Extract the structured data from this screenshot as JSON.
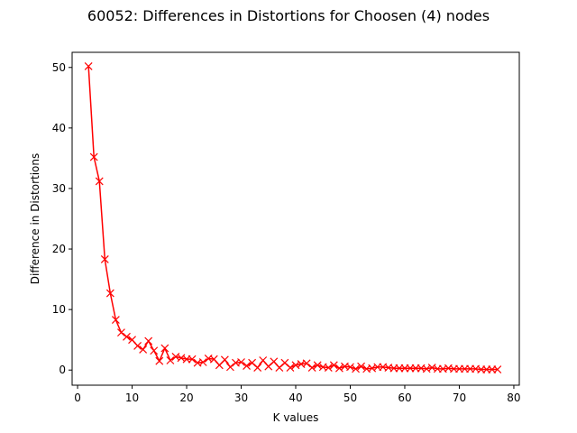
{
  "chart_data": {
    "type": "line",
    "title": "60052: Differences in Distortions for Choosen (4) nodes",
    "xlabel": "K values",
    "ylabel": "Difference in Distortions",
    "xlim": [
      -1,
      81
    ],
    "ylim": [
      -2.5,
      52.5
    ],
    "xticks": [
      0,
      10,
      20,
      30,
      40,
      50,
      60,
      70,
      80
    ],
    "yticks": [
      0,
      10,
      20,
      30,
      40,
      50
    ],
    "grid": false,
    "legend": "none",
    "series_color": "#ff0000",
    "marker": "x",
    "x": [
      2,
      3,
      4,
      5,
      6,
      7,
      8,
      9,
      10,
      11,
      12,
      13,
      14,
      15,
      16,
      17,
      18,
      19,
      20,
      21,
      22,
      23,
      24,
      25,
      26,
      27,
      28,
      29,
      30,
      31,
      32,
      33,
      34,
      35,
      36,
      37,
      38,
      39,
      40,
      41,
      42,
      43,
      44,
      45,
      46,
      47,
      48,
      49,
      50,
      51,
      52,
      53,
      54,
      55,
      56,
      57,
      58,
      59,
      60,
      61,
      62,
      63,
      64,
      65,
      66,
      67,
      68,
      69,
      70,
      71,
      72,
      73,
      74,
      75,
      76,
      77
    ],
    "y": [
      50.2,
      35.2,
      31.2,
      18.3,
      12.7,
      8.3,
      6.2,
      5.5,
      5.0,
      4.0,
      3.4,
      4.8,
      3.2,
      1.5,
      3.6,
      1.6,
      2.2,
      2.0,
      1.8,
      1.8,
      1.2,
      1.3,
      1.9,
      1.8,
      0.8,
      1.7,
      0.5,
      1.2,
      1.3,
      0.7,
      1.2,
      0.4,
      1.6,
      0.6,
      1.4,
      0.4,
      1.2,
      0.4,
      0.8,
      1.0,
      1.1,
      0.4,
      0.8,
      0.5,
      0.4,
      0.8,
      0.3,
      0.6,
      0.5,
      0.2,
      0.6,
      0.2,
      0.3,
      0.5,
      0.5,
      0.4,
      0.3,
      0.3,
      0.3,
      0.3,
      0.3,
      0.3,
      0.2,
      0.4,
      0.2,
      0.2,
      0.3,
      0.2,
      0.2,
      0.2,
      0.2,
      0.2,
      0.1,
      0.1,
      0.1,
      0.1
    ]
  }
}
